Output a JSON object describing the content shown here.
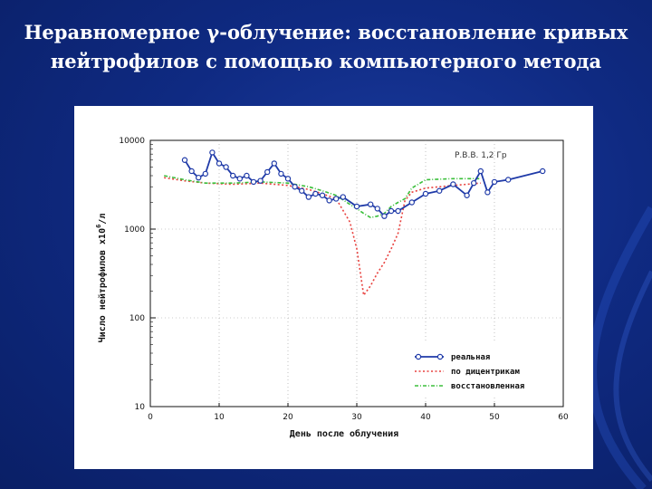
{
  "slide": {
    "title_line1": "Неравномерное γ-облучение: восстановление кривых",
    "title_line2": "нейтрофилов с помощью компьютерного метода"
  },
  "colors": {
    "background": "#0f2a82",
    "title": "#ffffff",
    "real": "#1f3aa8",
    "dicentric": "#e8413e",
    "restored": "#3bbf3b"
  },
  "chart_data": {
    "type": "line",
    "xlabel": "День после облучения",
    "ylabel": "Число нейтрофилов x10^6/л",
    "ylabel_main": "Число нейтрофилов x10",
    "ylabel_sup": "6",
    "ylabel_suffix": "/л",
    "xlim": [
      0,
      60
    ],
    "ylim": [
      10,
      10000
    ],
    "yscale": "log",
    "x_ticks": [
      "0",
      "10",
      "20",
      "30",
      "40",
      "50",
      "60"
    ],
    "y_ticks": [
      "10",
      "100",
      "1000",
      "10000"
    ],
    "annotation": "Р.В.В. 1,2 Гр",
    "grid": true,
    "legend_position": "bottom-right",
    "series": [
      {
        "name": "реальная",
        "style": "solid-markers",
        "x": [
          5,
          6,
          7,
          8,
          9,
          10,
          11,
          12,
          13,
          14,
          15,
          16,
          17,
          18,
          19,
          20,
          21,
          22,
          23,
          24,
          25,
          26,
          27,
          28,
          30,
          32,
          33,
          34,
          35,
          36,
          38,
          40,
          42,
          44,
          46,
          47,
          48,
          49,
          50,
          52,
          57
        ],
        "y": [
          6000,
          4500,
          3800,
          4200,
          7300,
          5500,
          5000,
          4000,
          3700,
          4000,
          3400,
          3500,
          4400,
          5500,
          4200,
          3700,
          3000,
          2700,
          2300,
          2500,
          2400,
          2100,
          2200,
          2300,
          1800,
          1900,
          1700,
          1400,
          1600,
          1600,
          2000,
          2500,
          2700,
          3200,
          2400,
          3300,
          4500,
          2600,
          3400,
          3600,
          4500
        ]
      },
      {
        "name": "по дицентрикам",
        "style": "dotted",
        "x": [
          2,
          5,
          8,
          12,
          16,
          20,
          23,
          25,
          27,
          29,
          30,
          31,
          32,
          33,
          34,
          35,
          36,
          37,
          38,
          40,
          44,
          48
        ],
        "y": [
          3800,
          3500,
          3300,
          3200,
          3300,
          3100,
          2800,
          2500,
          2200,
          1200,
          600,
          180,
          230,
          320,
          420,
          600,
          900,
          2100,
          2600,
          2900,
          3100,
          3300
        ]
      },
      {
        "name": "восстановленная",
        "style": "dashdot",
        "x": [
          2,
          5,
          8,
          12,
          16,
          20,
          23,
          25,
          27,
          29,
          30,
          31,
          32,
          33,
          34,
          35,
          36,
          37,
          38,
          40,
          44,
          48
        ],
        "y": [
          4000,
          3600,
          3300,
          3300,
          3400,
          3300,
          3000,
          2700,
          2400,
          1900,
          1700,
          1500,
          1350,
          1400,
          1500,
          1800,
          2000,
          2200,
          2900,
          3600,
          3700,
          3700
        ]
      }
    ]
  }
}
